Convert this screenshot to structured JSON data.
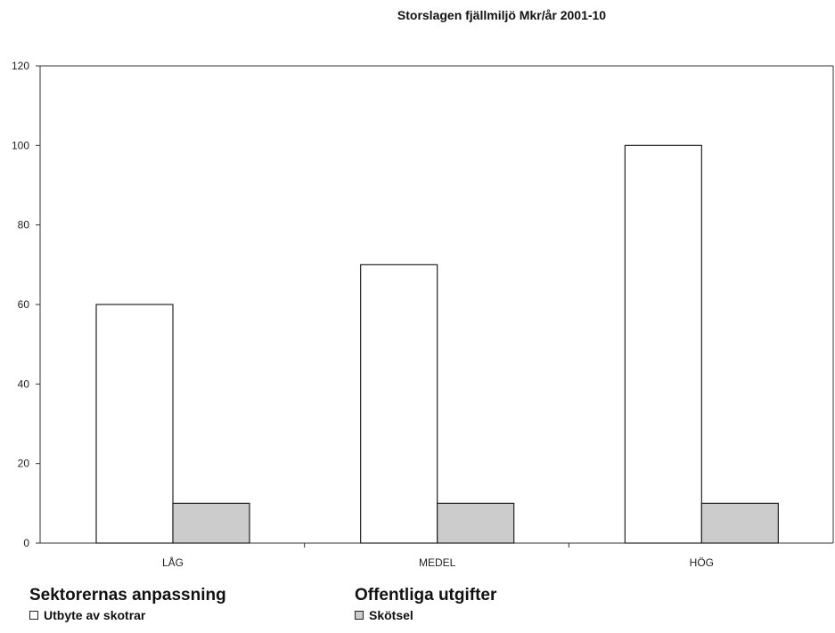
{
  "chart_data": {
    "type": "bar",
    "title": "Storslagen fjällmiljö Mkr/år 2001-10",
    "categories": [
      "LÅG",
      "MEDEL",
      "HÖG"
    ],
    "series": [
      {
        "name": "Utbyte av skotrar",
        "values": [
          60,
          70,
          100
        ],
        "color": "#ffffff"
      },
      {
        "name": "Skötsel",
        "values": [
          10,
          10,
          10
        ],
        "color": "#cccccc"
      }
    ],
    "ylim": [
      0,
      120
    ],
    "yticks": [
      0,
      20,
      40,
      60,
      80,
      100,
      120
    ],
    "yticks_labels": [
      "0",
      "20",
      "40",
      "60",
      "80",
      "100",
      "120"
    ],
    "grid": false,
    "legend_placement": "bottom-left"
  },
  "legend": {
    "groups": [
      {
        "title": "Sektorernas anpassning",
        "item_label": "Utbyte av skotrar",
        "swatch_color": "#ffffff"
      },
      {
        "title": "Offentliga utgifter",
        "item_label": "Skötsel",
        "swatch_color": "#cccccc"
      }
    ]
  }
}
